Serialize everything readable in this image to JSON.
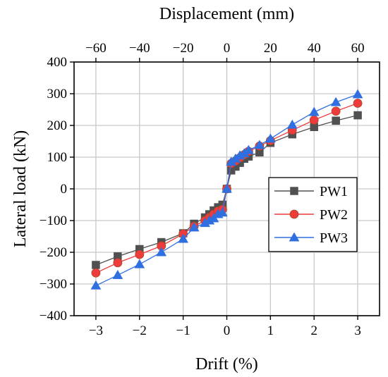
{
  "chart_data": {
    "type": "line",
    "xlabel": "Drift (%)",
    "ylabel": "Lateral load (kN)",
    "x2label": "Displacement (mm)",
    "xlim": [
      -3.5,
      3.5
    ],
    "ylim": [
      -400,
      400
    ],
    "x2lim": [
      -70,
      70
    ],
    "xticks": [
      -3,
      -2,
      -1,
      0,
      1,
      2,
      3
    ],
    "xtick_labels": [
      "−3",
      "−2",
      "−1",
      "0",
      "1",
      "2",
      "3"
    ],
    "x2ticks": [
      -60,
      -40,
      -20,
      0,
      20,
      40,
      60
    ],
    "x2tick_labels": [
      "−60",
      "−40",
      "−20",
      "0",
      "20",
      "40",
      "60"
    ],
    "yticks": [
      -400,
      -300,
      -200,
      -100,
      0,
      100,
      200,
      300,
      400
    ],
    "ytick_labels": [
      "−400",
      "−300",
      "−200",
      "−100",
      "0",
      "100",
      "200",
      "300",
      "400"
    ],
    "grid": true,
    "legend_position": "right-middle",
    "series": [
      {
        "name": "PW1",
        "color": "#505050",
        "marker": "square",
        "points": [
          [
            -3,
            -240
          ],
          [
            -2.5,
            -213
          ],
          [
            -2,
            -190
          ],
          [
            -1.5,
            -168
          ],
          [
            -1,
            -140
          ],
          [
            -0.75,
            -110
          ],
          [
            -0.5,
            -90
          ],
          [
            -0.4,
            -80
          ],
          [
            -0.3,
            -68
          ],
          [
            -0.2,
            -58
          ],
          [
            -0.1,
            -50
          ],
          [
            0,
            0
          ],
          [
            0.1,
            58
          ],
          [
            0.2,
            70
          ],
          [
            0.3,
            82
          ],
          [
            0.4,
            95
          ],
          [
            0.5,
            102
          ],
          [
            0.75,
            115
          ],
          [
            1,
            145
          ],
          [
            1.5,
            172
          ],
          [
            2,
            195
          ],
          [
            2.5,
            215
          ],
          [
            3,
            232
          ]
        ]
      },
      {
        "name": "PW2",
        "color": "#ef3b3b",
        "marker": "circle",
        "points": [
          [
            -3,
            -265
          ],
          [
            -2.5,
            -233
          ],
          [
            -2,
            -207
          ],
          [
            -1.5,
            -180
          ],
          [
            -1,
            -142
          ],
          [
            -0.75,
            -118
          ],
          [
            -0.5,
            -100
          ],
          [
            -0.4,
            -90
          ],
          [
            -0.3,
            -80
          ],
          [
            -0.2,
            -70
          ],
          [
            -0.1,
            -65
          ],
          [
            0,
            0
          ],
          [
            0.1,
            80
          ],
          [
            0.2,
            88
          ],
          [
            0.3,
            98
          ],
          [
            0.4,
            108
          ],
          [
            0.5,
            118
          ],
          [
            0.75,
            135
          ],
          [
            1,
            152
          ],
          [
            1.5,
            185
          ],
          [
            2,
            217
          ],
          [
            2.5,
            245
          ],
          [
            3,
            270
          ]
        ]
      },
      {
        "name": "PW3",
        "color": "#2f6fe0",
        "marker": "triangle",
        "points": [
          [
            -3,
            -305
          ],
          [
            -2.5,
            -272
          ],
          [
            -2,
            -238
          ],
          [
            -1.5,
            -200
          ],
          [
            -1,
            -158
          ],
          [
            -0.75,
            -122
          ],
          [
            -0.5,
            -108
          ],
          [
            -0.4,
            -100
          ],
          [
            -0.3,
            -93
          ],
          [
            -0.2,
            -80
          ],
          [
            -0.1,
            -75
          ],
          [
            0,
            0
          ],
          [
            0.1,
            85
          ],
          [
            0.2,
            95
          ],
          [
            0.3,
            105
          ],
          [
            0.4,
            112
          ],
          [
            0.5,
            122
          ],
          [
            0.75,
            138
          ],
          [
            1,
            158
          ],
          [
            1.5,
            202
          ],
          [
            2,
            242
          ],
          [
            2.5,
            273
          ],
          [
            3,
            298
          ]
        ]
      }
    ]
  }
}
